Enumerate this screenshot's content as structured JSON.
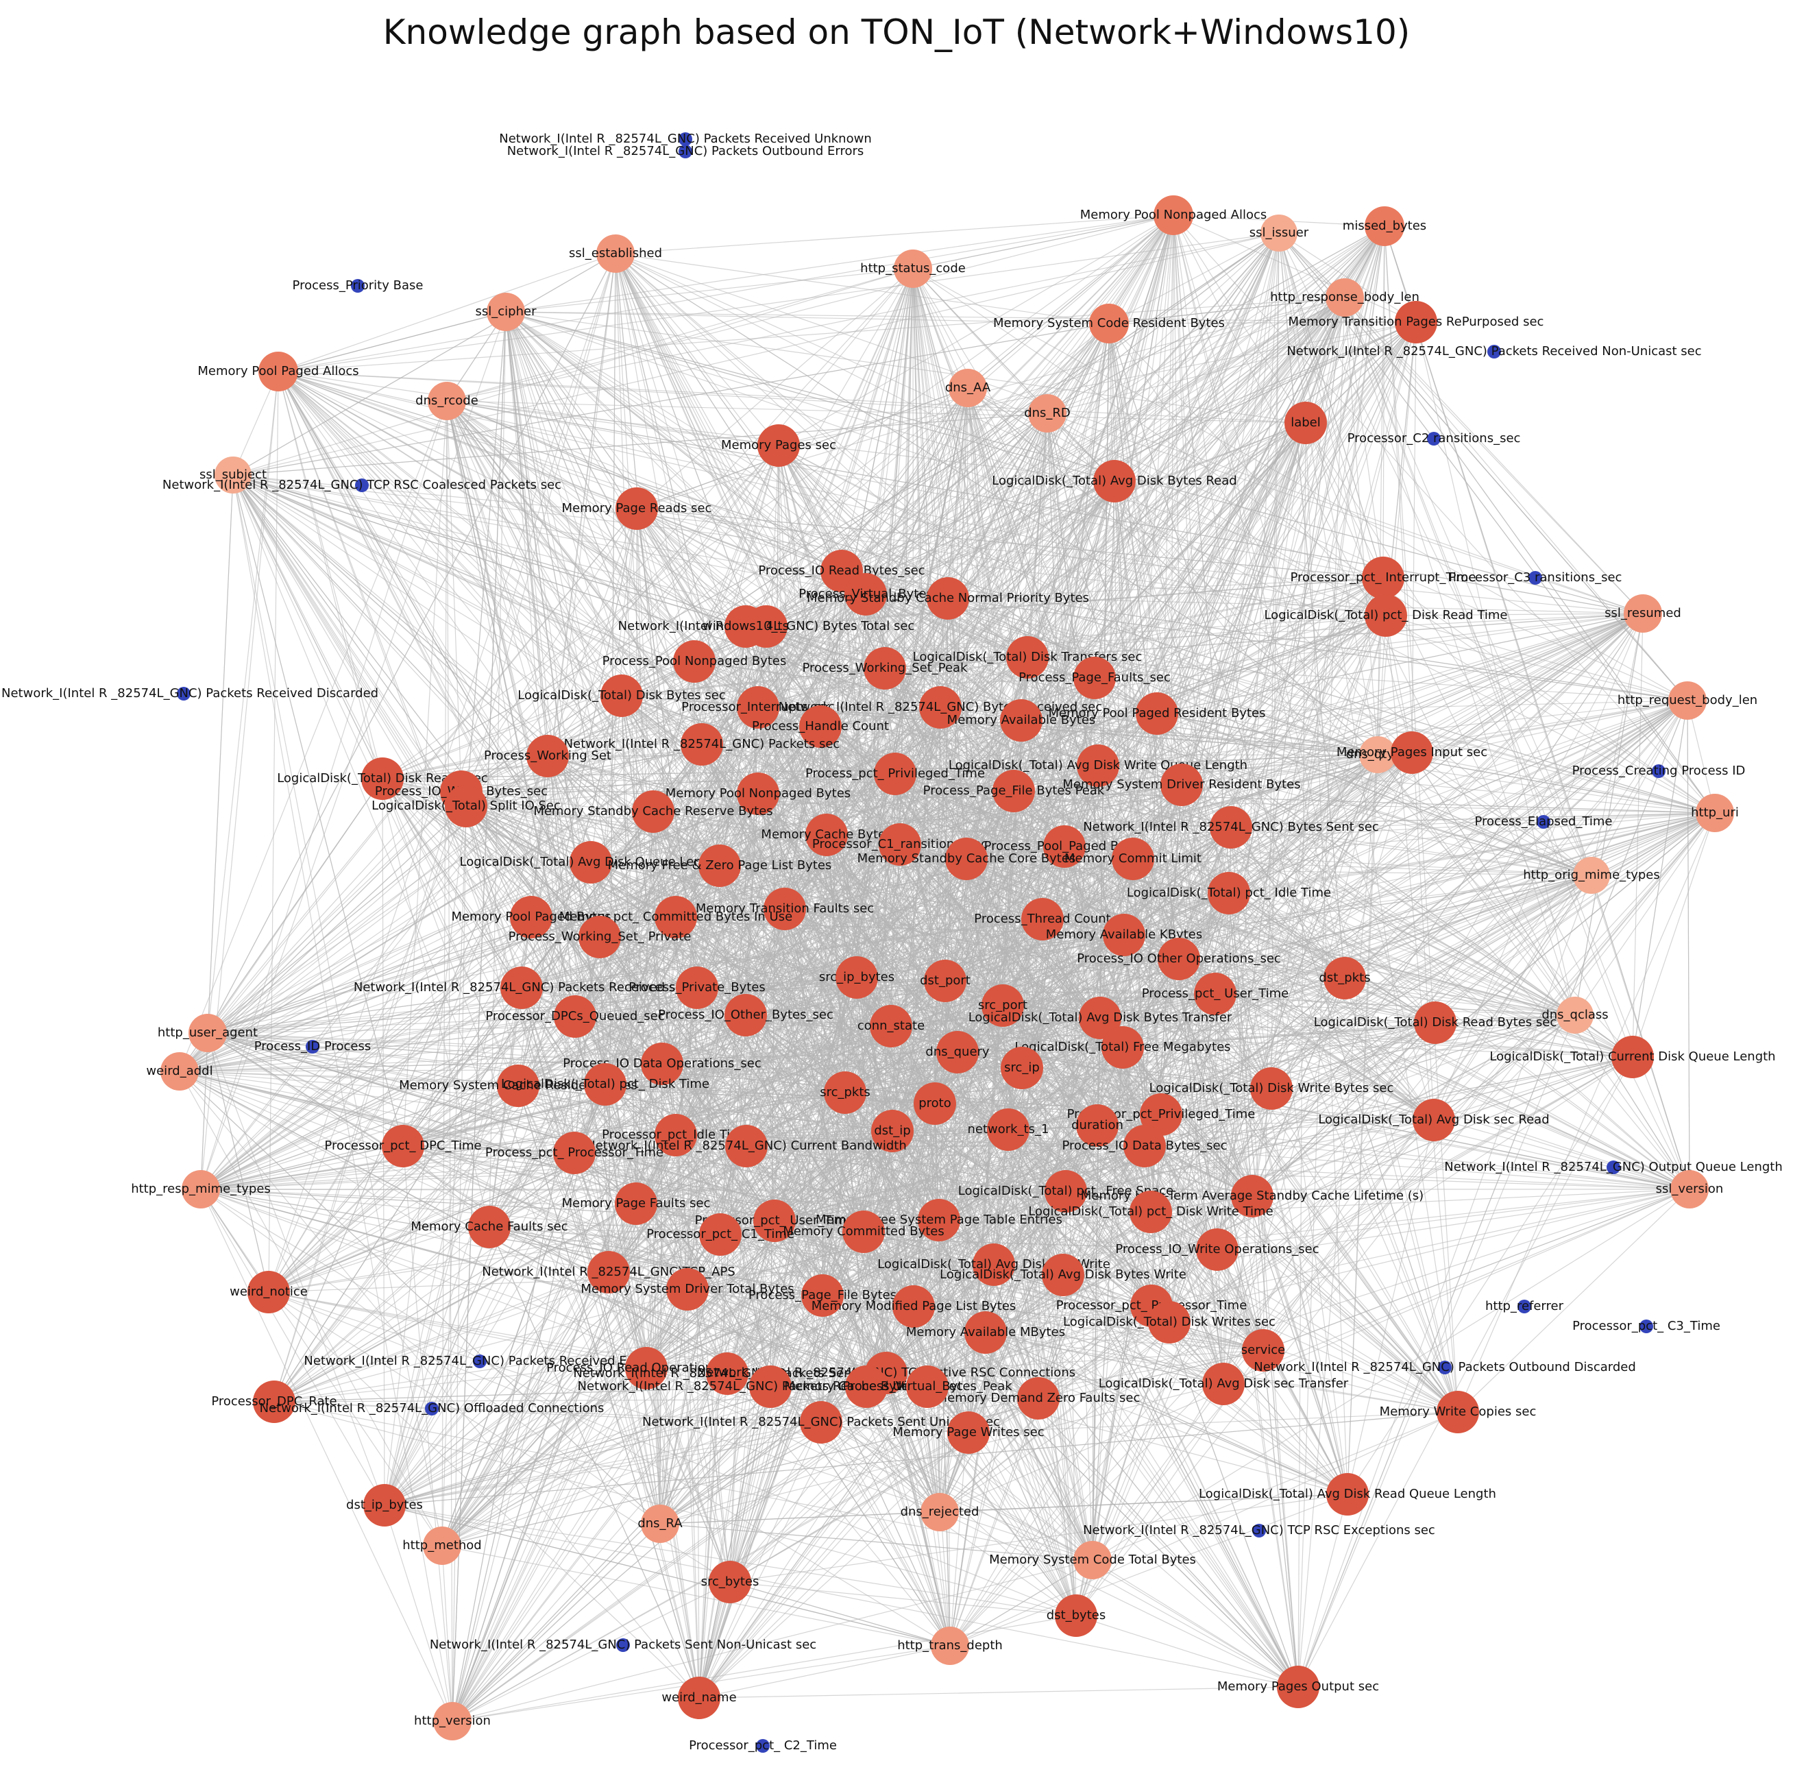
{
  "title": "Knowledge graph based on TON_IoT (Network+Windows10)",
  "colors": {
    "core": "#d9553f",
    "mid": "#ea7a5e",
    "light": "#f0957a",
    "pale": "#f4ab90",
    "isolated": "#3344bb",
    "edge": "#b4b4b4"
  },
  "nodes": [
    {
      "label": "Network_I(Intel R _82574L_GNC) Packets Received Unknown",
      "group": "isolated"
    },
    {
      "label": "Network_I(Intel R _82574L_GNC) Packets Outbound Errors",
      "group": "isolated"
    },
    {
      "label": "Memory Pool Nonpaged Allocs",
      "group": "mid"
    },
    {
      "label": "ssl_issuer",
      "group": "pale"
    },
    {
      "label": "missed_bytes",
      "group": "mid"
    },
    {
      "label": "ssl_established",
      "group": "light"
    },
    {
      "label": "http_status_code",
      "group": "light"
    },
    {
      "label": "Process_Priority Base",
      "group": "isolated"
    },
    {
      "label": "http_response_body_len",
      "group": "light"
    },
    {
      "label": "ssl_cipher",
      "group": "light"
    },
    {
      "label": "Memory System Code Resident Bytes",
      "group": "mid"
    },
    {
      "label": "Memory Transition Pages RePurposed sec",
      "group": "core"
    },
    {
      "label": "Network_I(Intel R _82574L_GNC) Packets Received Non-Unicast sec",
      "group": "isolated"
    },
    {
      "label": "Memory Pool Paged Allocs",
      "group": "mid"
    },
    {
      "label": "dns_AA",
      "group": "light"
    },
    {
      "label": "dns_rcode",
      "group": "light"
    },
    {
      "label": "dns_RD",
      "group": "light"
    },
    {
      "label": "label",
      "group": "core"
    },
    {
      "label": "Memory Pages sec",
      "group": "core"
    },
    {
      "label": "Processor_C2 ransitions_sec",
      "group": "isolated"
    },
    {
      "label": "ssl_subject",
      "group": "pale"
    },
    {
      "label": "Network_I(Intel R _82574L_GNC) TCP RSC Coalesced Packets sec",
      "group": "isolated"
    },
    {
      "label": "LogicalDisk(_Total) Avg Disk Bytes Read",
      "group": "core"
    },
    {
      "label": "Memory Page Reads sec",
      "group": "core"
    },
    {
      "label": "Processor_pct_ Interrupt_Time",
      "group": "core"
    },
    {
      "label": "Processor_C3 ransitions_sec",
      "group": "isolated"
    },
    {
      "label": "Process_IO Read Bytes_sec",
      "group": "core"
    },
    {
      "label": "Process_Virtual_Bytes",
      "group": "core"
    },
    {
      "label": "Memory Standby Cache Normal Priority Bytes",
      "group": "core"
    },
    {
      "label": "LogicalDisk(_Total) pct_ Disk Read Time",
      "group": "core"
    },
    {
      "label": "ssl_resumed",
      "group": "light"
    },
    {
      "label": "Network_I(Intel R _82574L_GNC) Bytes Total sec",
      "group": "core"
    },
    {
      "label": "windows10_ts",
      "group": "core"
    },
    {
      "label": "Process_Pool Nonpaged Bytes",
      "group": "core"
    },
    {
      "label": "Process_Working_Set_Peak",
      "group": "core"
    },
    {
      "label": "LogicalDisk(_Total) Disk Transfers sec",
      "group": "core"
    },
    {
      "label": "Process_Page_Faults_sec",
      "group": "core"
    },
    {
      "label": "Network_I(Intel R _82574L_GNC) Packets Received Discarded",
      "group": "isolated"
    },
    {
      "label": "LogicalDisk(_Total) Disk Bytes sec",
      "group": "core"
    },
    {
      "label": "Processor_Interrupts_sec",
      "group": "core"
    },
    {
      "label": "Network_I(Intel R _82574L_GNC) Bytes Received sec",
      "group": "core"
    },
    {
      "label": "Memory Available Bytes",
      "group": "core"
    },
    {
      "label": "Memory Pool Paged Resident Bytes",
      "group": "core"
    },
    {
      "label": "http_request_body_len",
      "group": "light"
    },
    {
      "label": "Process_Handle Count",
      "group": "core"
    },
    {
      "label": "dns_qtype",
      "group": "pale"
    },
    {
      "label": "Network_I(Intel R _82574L_GNC) Packets sec",
      "group": "core"
    },
    {
      "label": "Process_Working Set",
      "group": "core"
    },
    {
      "label": "Memory Pages Input sec",
      "group": "core"
    },
    {
      "label": "Process_pct_ Privileged_Time",
      "group": "core"
    },
    {
      "label": "LogicalDisk(_Total) Avg  Disk Write Queue Length",
      "group": "core"
    },
    {
      "label": "LogicalDisk(_Total) Disk Reads sec",
      "group": "core"
    },
    {
      "label": "Process_Creating Process ID",
      "group": "isolated"
    },
    {
      "label": "Process_IO_Write_Bytes_sec",
      "group": "core"
    },
    {
      "label": "Memory Pool Nonpaged Bytes",
      "group": "core"
    },
    {
      "label": "Memory System Driver Resident Bytes",
      "group": "core"
    },
    {
      "label": "Process_Page_File Bytes Peak",
      "group": "core"
    },
    {
      "label": "LogicalDisk(_Total) Split IO Sec",
      "group": "core"
    },
    {
      "label": "Memory Standby Cache Reserve Bytes",
      "group": "core"
    },
    {
      "label": "http_uri",
      "group": "light"
    },
    {
      "label": "Process_Elapsed_Time",
      "group": "isolated"
    },
    {
      "label": "Network_I(Intel R _82574L_GNC) Bytes Sent sec",
      "group": "core"
    },
    {
      "label": "Memory Cache Bytes",
      "group": "core"
    },
    {
      "label": "Processor_C1_ransitions_sec",
      "group": "core"
    },
    {
      "label": "Process_Pool_Paged Bytes",
      "group": "core"
    },
    {
      "label": "LogicalDisk(_Total) Avg  Disk Queue Length",
      "group": "core"
    },
    {
      "label": "Memory Free & Zero Page List Bytes",
      "group": "core"
    },
    {
      "label": "Memory Standby Cache Core Bytes",
      "group": "core"
    },
    {
      "label": "Memory Commit Limit",
      "group": "core"
    },
    {
      "label": "http_orig_mime_types",
      "group": "pale"
    },
    {
      "label": "LogicalDisk(_Total) pct_ Idle Time",
      "group": "core"
    },
    {
      "label": "Memory Transition Faults sec",
      "group": "core"
    },
    {
      "label": "Memory Pool Paged Bytes",
      "group": "core"
    },
    {
      "label": "Memory pct_ Committed Bytes In Use",
      "group": "core"
    },
    {
      "label": "Process_Thread Count",
      "group": "core"
    },
    {
      "label": "Memory Available KBytes",
      "group": "core"
    },
    {
      "label": "Process_Working_Set_ Private",
      "group": "core"
    },
    {
      "label": "Process_IO Other Operations_sec",
      "group": "core"
    },
    {
      "label": "src_ip_bytes",
      "group": "core"
    },
    {
      "label": "dst_port",
      "group": "core"
    },
    {
      "label": "dst_pkts",
      "group": "core"
    },
    {
      "label": "Network_I(Intel R _82574L_GNC) Packets Received sec",
      "group": "core"
    },
    {
      "label": "Process_Private_Bytes",
      "group": "core"
    },
    {
      "label": "Process_pct_ User_Time",
      "group": "core"
    },
    {
      "label": "src_port",
      "group": "core"
    },
    {
      "label": "http_user_agent",
      "group": "light"
    },
    {
      "label": "Processor_DPCs_Queued_sec",
      "group": "core"
    },
    {
      "label": "Process_IO_Other_Bytes_sec",
      "group": "core"
    },
    {
      "label": "conn_state",
      "group": "core"
    },
    {
      "label": "LogicalDisk(_Total) Avg  Disk Bytes Transfer",
      "group": "core"
    },
    {
      "label": "LogicalDisk(_Total) Disk Read Bytes sec",
      "group": "core"
    },
    {
      "label": "dns_qclass",
      "group": "pale"
    },
    {
      "label": "Process_ID Process",
      "group": "isolated"
    },
    {
      "label": "weird_addl",
      "group": "light"
    },
    {
      "label": "dns_query",
      "group": "core"
    },
    {
      "label": "LogicalDisk(_Total) Free Megabytes",
      "group": "core"
    },
    {
      "label": "LogicalDisk(_Total) Current Disk Queue Length",
      "group": "core"
    },
    {
      "label": "Process_IO Data Operations_sec",
      "group": "core"
    },
    {
      "label": "src_ip",
      "group": "core"
    },
    {
      "label": "Memory System Cache Resident Bytes",
      "group": "core"
    },
    {
      "label": "LogicalDisk(_Total) pct_ Disk Time",
      "group": "core"
    },
    {
      "label": "LogicalDisk(_Total) Disk Write Bytes sec",
      "group": "core"
    },
    {
      "label": "src_pkts",
      "group": "core"
    },
    {
      "label": "proto",
      "group": "core"
    },
    {
      "label": "Processor_pct_Privileged_Time",
      "group": "core"
    },
    {
      "label": "LogicalDisk(_Total) Avg  Disk sec Read",
      "group": "core"
    },
    {
      "label": "dst_ip",
      "group": "core"
    },
    {
      "label": "network_ts_1",
      "group": "core"
    },
    {
      "label": "duration",
      "group": "core"
    },
    {
      "label": "Processor_pct_Idle Time",
      "group": "core"
    },
    {
      "label": "Processor_pct_ DPC_Time",
      "group": "core"
    },
    {
      "label": "Network_I(Intel R _82574L_GNC) Current Bandwidth",
      "group": "core"
    },
    {
      "label": "Process_pct_ Processor_Time",
      "group": "core"
    },
    {
      "label": "Process_IO Data Bytes_sec",
      "group": "core"
    },
    {
      "label": "Network_I(Intel R _82574L_GNC) Output Queue Length",
      "group": "isolated"
    },
    {
      "label": "http_resp_mime_types",
      "group": "light"
    },
    {
      "label": "LogicalDisk(_Total) pct_ Free Space",
      "group": "core"
    },
    {
      "label": "Memory Long-Term Average Standby Cache Lifetime (s)",
      "group": "core"
    },
    {
      "label": "ssl_version",
      "group": "light"
    },
    {
      "label": "Memory Page Faults sec",
      "group": "core"
    },
    {
      "label": "LogicalDisk(_Total) pct_ Disk Write Time",
      "group": "core"
    },
    {
      "label": "Processor_pct_ User_Time",
      "group": "core"
    },
    {
      "label": "Memory Free System Page Table Entries",
      "group": "core"
    },
    {
      "label": "Memory Cache Faults sec",
      "group": "core"
    },
    {
      "label": "Processor_pct_ C1_Time",
      "group": "core"
    },
    {
      "label": "Memory Committed Bytes",
      "group": "core"
    },
    {
      "label": "Process_IO_Write Operations_sec",
      "group": "core"
    },
    {
      "label": "LogicalDisk(_Total) Avg  Disk sec Write",
      "group": "core"
    },
    {
      "label": "Network_I(Intel R _82574L_GNC)TCP_APS",
      "group": "core"
    },
    {
      "label": "weird_notice",
      "group": "core"
    },
    {
      "label": "LogicalDisk(_Total) Avg  Disk Bytes Write",
      "group": "core"
    },
    {
      "label": "Memory System Driver Total Bytes",
      "group": "core"
    },
    {
      "label": "Process_Page_File Bytes",
      "group": "core"
    },
    {
      "label": "Processor_pct_ Processor_Time",
      "group": "core"
    },
    {
      "label": "http_referrer",
      "group": "isolated"
    },
    {
      "label": "Memory Modified Page List Bytes",
      "group": "core"
    },
    {
      "label": "Processor_pct_ C3_Time",
      "group": "isolated"
    },
    {
      "label": "LogicalDisk(_Total) Disk Writes sec",
      "group": "core"
    },
    {
      "label": "Memory Available MBytes",
      "group": "core"
    },
    {
      "label": "service",
      "group": "core"
    },
    {
      "label": "Network_I(Intel R _82574L_GNC) Packets Received Errors",
      "group": "isolated"
    },
    {
      "label": "Network_I(Intel R _82574L_GNC) Packets Outbound Discarded",
      "group": "isolated"
    },
    {
      "label": "Process_IO Read Operations_sec",
      "group": "core"
    },
    {
      "label": "Network_I(Intel R _82574L_GNC) Packets Sent sec",
      "group": "core"
    },
    {
      "label": "Network_I(Intel R _82574L_GNC) TCP Active RSC Connections",
      "group": "core"
    },
    {
      "label": "LogicalDisk(_Total) Avg  Disk sec Transfer",
      "group": "core"
    },
    {
      "label": "Processor_DPC_Rate",
      "group": "core"
    },
    {
      "label": "Network_I(Intel R _82574L_GNC) Offloaded Connections",
      "group": "isolated"
    },
    {
      "label": "Memory Write Copies sec",
      "group": "core"
    },
    {
      "label": "Network_I(Intel R _82574L_GNC) Packets Received Unicast sec",
      "group": "core"
    },
    {
      "label": "Memory Cache Bytes Peak",
      "group": "core"
    },
    {
      "label": "Memory Demand Zero Faults sec",
      "group": "core"
    },
    {
      "label": "Process_Virtual_Bytes_Peak",
      "group": "core"
    },
    {
      "label": "Network_I(Intel R _82574L_GNC) Packets Sent Unicast sec",
      "group": "core"
    },
    {
      "label": "Memory Page Writes sec",
      "group": "core"
    },
    {
      "label": "dst_ip_bytes",
      "group": "core"
    },
    {
      "label": "dns_rejected",
      "group": "light"
    },
    {
      "label": "LogicalDisk(_Total) Avg  Disk Read Queue Length",
      "group": "core"
    },
    {
      "label": "dns_RA",
      "group": "light"
    },
    {
      "label": "Network_I(Intel R _82574L_GNC) TCP RSC Exceptions sec",
      "group": "isolated"
    },
    {
      "label": "http_method",
      "group": "light"
    },
    {
      "label": "Memory System Code Total Bytes",
      "group": "light"
    },
    {
      "label": "src_bytes",
      "group": "core"
    },
    {
      "label": "dst_bytes",
      "group": "core"
    },
    {
      "label": "Network_I(Intel R _82574L_GNC) Packets Sent Non-Unicast sec",
      "group": "isolated"
    },
    {
      "label": "http_trans_depth",
      "group": "light"
    },
    {
      "label": "http_version",
      "group": "light"
    },
    {
      "label": "Memory Pages Output sec",
      "group": "core"
    },
    {
      "label": "weird_name",
      "group": "core"
    },
    {
      "label": "Processor_pct_ C2_Time",
      "group": "isolated"
    }
  ]
}
